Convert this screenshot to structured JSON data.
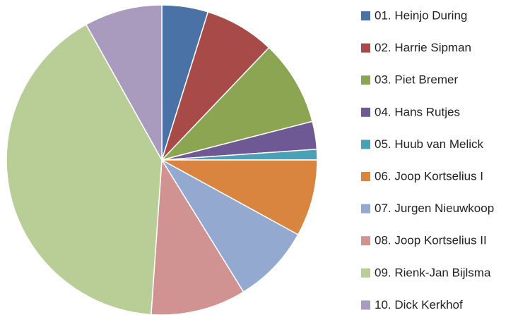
{
  "chart_data": {
    "type": "pie",
    "categories": [
      "01. Heinjo During",
      "02. Harrie Sipman",
      "03. Piet Bremer",
      "04. Hans Rutjes",
      "05. Huub van Melick",
      "06. Joop Kortselius I",
      "07. Jurgen Nieuwkoop",
      "08. Joop Kortselius II",
      "09. Rienk-Jan Bijlsma",
      "10. Dick Kerkhof"
    ],
    "values": [
      4.8,
      7.3,
      8.9,
      2.9,
      1.1,
      8.0,
      8.2,
      9.9,
      40.8,
      8.1
    ],
    "colors": [
      "#4a72a6",
      "#a84a48",
      "#8ca552",
      "#6f5994",
      "#4aa0b5",
      "#d9843f",
      "#94a9cf",
      "#d09392",
      "#b9cd96",
      "#a99bbd"
    ],
    "legend": "right"
  }
}
